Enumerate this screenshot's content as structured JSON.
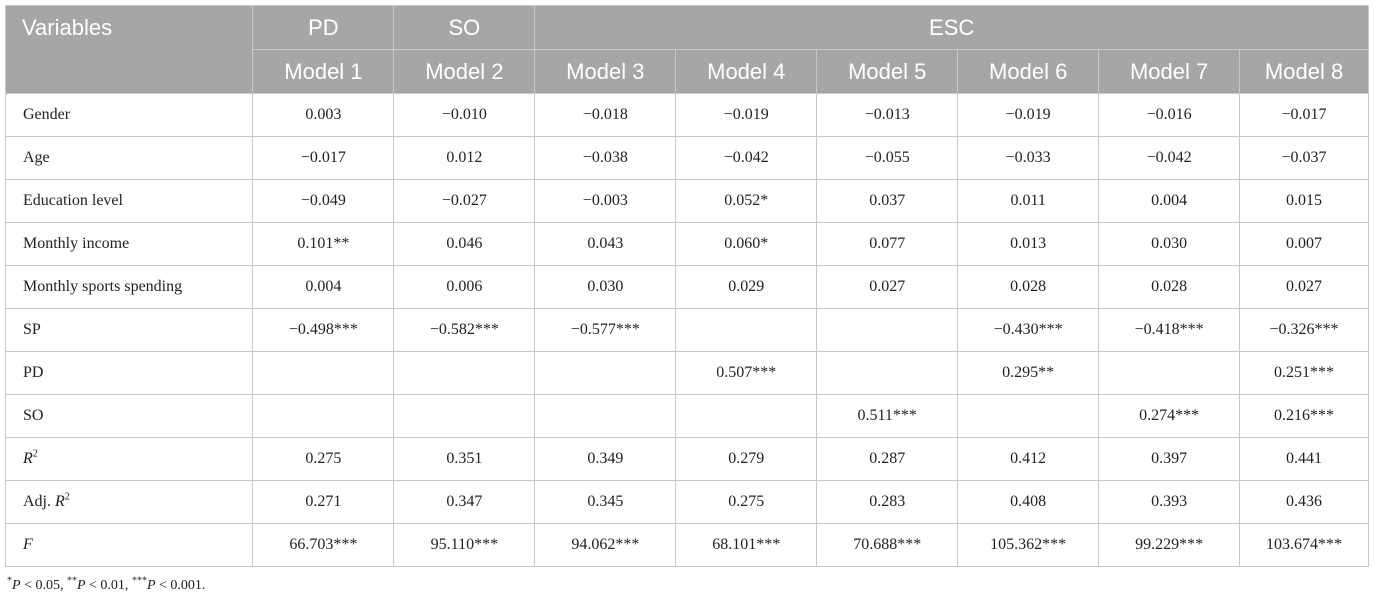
{
  "header": {
    "variables_label": "Variables",
    "groups": [
      "PD",
      "SO",
      "ESC"
    ],
    "models": [
      "Model 1",
      "Model 2",
      "Model 3",
      "Model 4",
      "Model 5",
      "Model 6",
      "Model 7",
      "Model 8"
    ]
  },
  "rows": [
    {
      "label": "Gender",
      "values": [
        "0.003",
        "−0.010",
        "−0.018",
        "−0.019",
        "−0.013",
        "−0.019",
        "−0.016",
        "−0.017"
      ]
    },
    {
      "label": "Age",
      "values": [
        "−0.017",
        "0.012",
        "−0.038",
        "−0.042",
        "−0.055",
        "−0.033",
        "−0.042",
        "−0.037"
      ]
    },
    {
      "label": "Education level",
      "values": [
        "−0.049",
        "−0.027",
        "−0.003",
        "0.052*",
        "0.037",
        "0.011",
        "0.004",
        "0.015"
      ]
    },
    {
      "label": "Monthly income",
      "values": [
        "0.101**",
        "0.046",
        "0.043",
        "0.060*",
        "0.077",
        "0.013",
        "0.030",
        "0.007"
      ]
    },
    {
      "label": "Monthly sports spending",
      "values": [
        "0.004",
        "0.006",
        "0.030",
        "0.029",
        "0.027",
        "0.028",
        "0.028",
        "0.027"
      ]
    },
    {
      "label": "SP",
      "values": [
        "−0.498***",
        "−0.582***",
        "−0.577***",
        "",
        "",
        "−0.430***",
        "−0.418***",
        "−0.326***"
      ]
    },
    {
      "label": "PD",
      "values": [
        "",
        "",
        "",
        "0.507***",
        "",
        "0.295**",
        "",
        "0.251***"
      ]
    },
    {
      "label": "SO",
      "values": [
        "",
        "",
        "",
        "",
        "0.511***",
        "",
        "0.274***",
        "0.216***"
      ]
    },
    {
      "label": "R",
      "label_sup": "2",
      "label_italic": true,
      "values": [
        "0.275",
        "0.351",
        "0.349",
        "0.279",
        "0.287",
        "0.412",
        "0.397",
        "0.441"
      ]
    },
    {
      "label_prefix": "Adj. ",
      "label": "R",
      "label_sup": "2",
      "label_italic": true,
      "values": [
        "0.271",
        "0.347",
        "0.345",
        "0.275",
        "0.283",
        "0.408",
        "0.393",
        "0.436"
      ]
    },
    {
      "label": "F",
      "label_italic": true,
      "values": [
        "66.703***",
        "95.110***",
        "94.062***",
        "68.101***",
        "70.688***",
        "105.362***",
        "99.229***",
        "103.674***"
      ]
    }
  ],
  "footnote": [
    {
      "stars": "*",
      "p": "P",
      "rel": " < 0.05, "
    },
    {
      "stars": "**",
      "p": "P",
      "rel": " < 0.01, "
    },
    {
      "stars": "***",
      "p": "P",
      "rel": " < 0.001."
    }
  ]
}
